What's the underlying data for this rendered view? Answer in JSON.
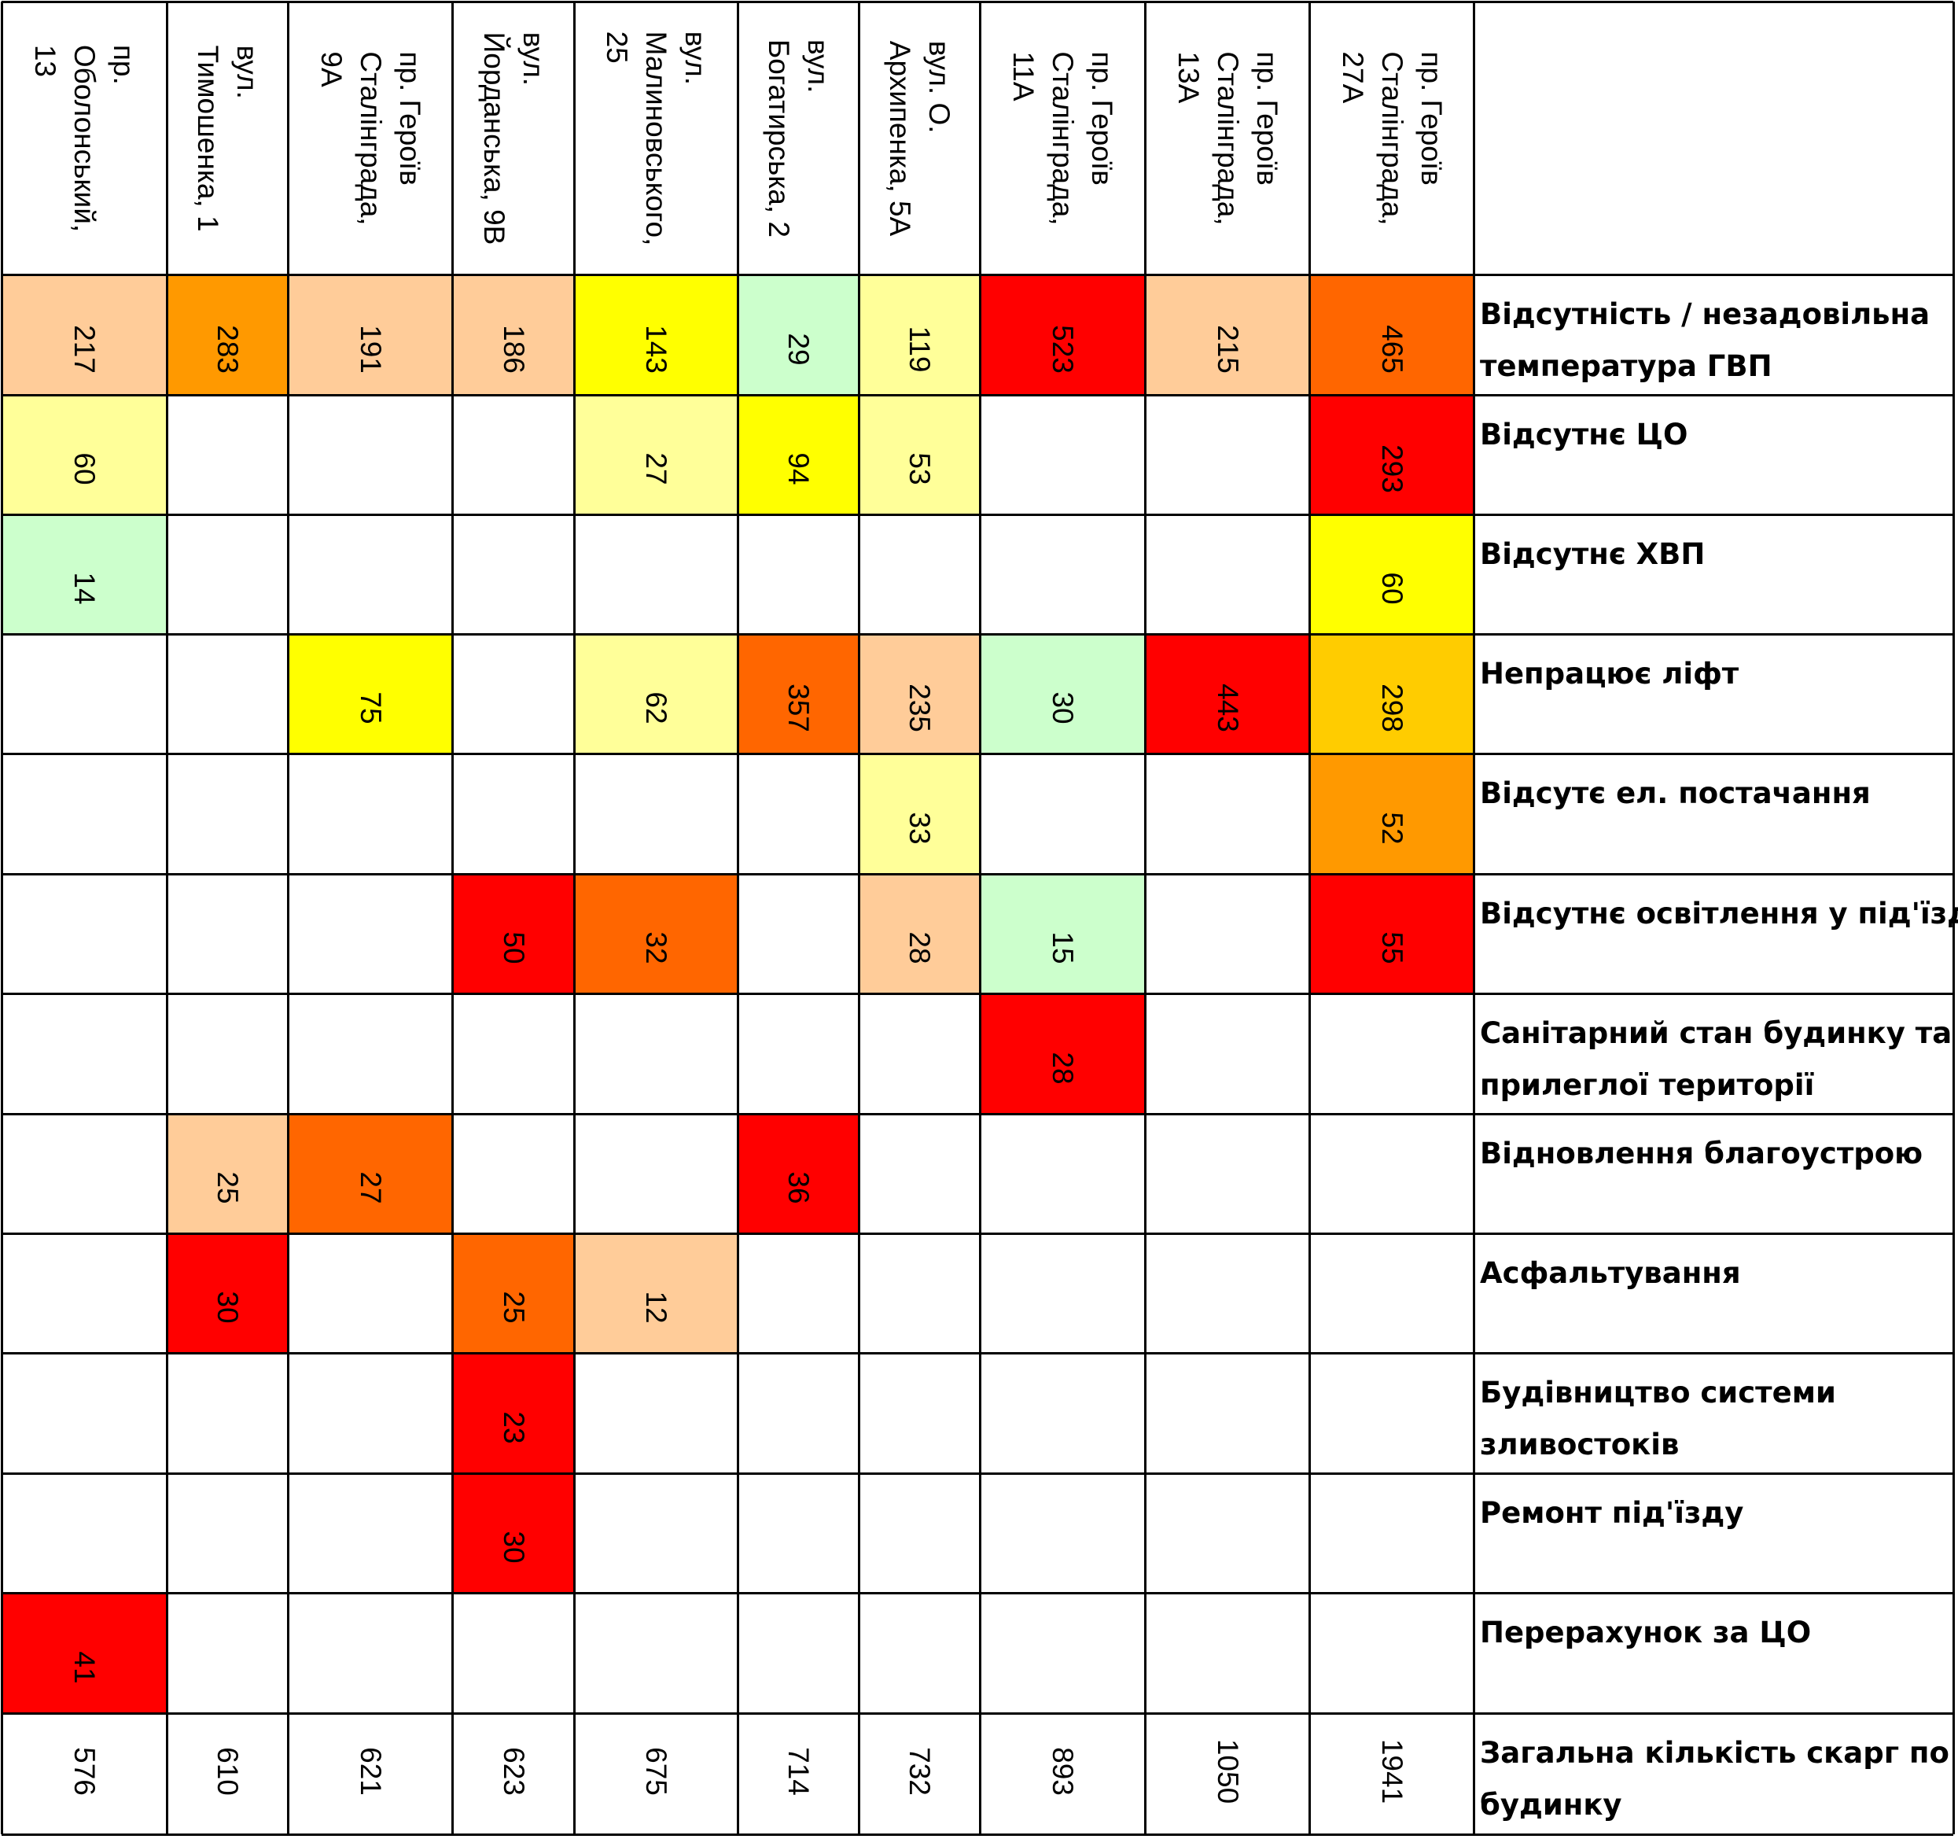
{
  "buildings": [
    {
      "name_lines": [
        "пр.",
        "Оболонський,",
        "13"
      ],
      "total": "576"
    },
    {
      "name_lines": [
        "вул.",
        "Тимошенка, 1"
      ],
      "total": "610"
    },
    {
      "name_lines": [
        "пр. Героїв",
        "Сталінграда,",
        "9А"
      ],
      "total": "621"
    },
    {
      "name_lines": [
        "вул.",
        "Йорданська, 9В"
      ],
      "total": "623"
    },
    {
      "name_lines": [
        "вул.",
        "Малиновського,",
        "25"
      ],
      "total": "675"
    },
    {
      "name_lines": [
        "вул.",
        "Богатирська, 2"
      ],
      "total": "714"
    },
    {
      "name_lines": [
        "вул. О.",
        "Архипенка, 5А"
      ],
      "total": "732"
    },
    {
      "name_lines": [
        "пр. Героїв",
        "Сталінграда,",
        "11А"
      ],
      "total": "893"
    },
    {
      "name_lines": [
        "пр. Героїв",
        "Сталінграда,",
        "13А"
      ],
      "total": "1050"
    },
    {
      "name_lines": [
        "пр. Героїв",
        "Сталінграда,",
        "27А"
      ],
      "total": "1941"
    }
  ],
  "rows": [
    {
      "label_lines": [
        "Відсутність / незадовільна",
        "температура ГВП"
      ],
      "cells": [
        {
          "v": "217",
          "c": "#FFCC99"
        },
        {
          "v": "283",
          "c": "#FF9900"
        },
        {
          "v": "191",
          "c": "#FFCC99"
        },
        {
          "v": "186",
          "c": "#FFCC99"
        },
        {
          "v": "143",
          "c": "#FFFF00"
        },
        {
          "v": "29",
          "c": "#CCFFCC"
        },
        {
          "v": "119",
          "c": "#FFFF99"
        },
        {
          "v": "523",
          "c": "#FF0000"
        },
        {
          "v": "215",
          "c": "#FFCC99"
        },
        {
          "v": "465",
          "c": "#FF6600"
        }
      ]
    },
    {
      "label_lines": [
        "Відсутнє ЦО"
      ],
      "cells": [
        {
          "v": "60",
          "c": "#FFFF99"
        },
        {
          "v": "",
          "c": ""
        },
        {
          "v": "",
          "c": ""
        },
        {
          "v": "",
          "c": ""
        },
        {
          "v": "27",
          "c": "#FFFF99"
        },
        {
          "v": "94",
          "c": "#FFFF00"
        },
        {
          "v": "53",
          "c": "#FFFF99"
        },
        {
          "v": "",
          "c": ""
        },
        {
          "v": "",
          "c": ""
        },
        {
          "v": "293",
          "c": "#FF0000"
        }
      ]
    },
    {
      "label_lines": [
        "Відсутнє ХВП"
      ],
      "cells": [
        {
          "v": "14",
          "c": "#CCFFCC"
        },
        {
          "v": "",
          "c": ""
        },
        {
          "v": "",
          "c": ""
        },
        {
          "v": "",
          "c": ""
        },
        {
          "v": "",
          "c": ""
        },
        {
          "v": "",
          "c": ""
        },
        {
          "v": "",
          "c": ""
        },
        {
          "v": "",
          "c": ""
        },
        {
          "v": "",
          "c": ""
        },
        {
          "v": "60",
          "c": "#FFFF00"
        }
      ]
    },
    {
      "label_lines": [
        "Непрацює ліфт"
      ],
      "cells": [
        {
          "v": "",
          "c": ""
        },
        {
          "v": "",
          "c": ""
        },
        {
          "v": "75",
          "c": "#FFFF00"
        },
        {
          "v": "",
          "c": ""
        },
        {
          "v": "62",
          "c": "#FFFF99"
        },
        {
          "v": "357",
          "c": "#FF6600"
        },
        {
          "v": "235",
          "c": "#FFCC99"
        },
        {
          "v": "30",
          "c": "#CCFFCC"
        },
        {
          "v": "443",
          "c": "#FF0000"
        },
        {
          "v": "298",
          "c": "#FFCC00"
        }
      ]
    },
    {
      "label_lines": [
        "Відсутє  ел. постачання"
      ],
      "cells": [
        {
          "v": "",
          "c": ""
        },
        {
          "v": "",
          "c": ""
        },
        {
          "v": "",
          "c": ""
        },
        {
          "v": "",
          "c": ""
        },
        {
          "v": "",
          "c": ""
        },
        {
          "v": "",
          "c": ""
        },
        {
          "v": "33",
          "c": "#FFFF99"
        },
        {
          "v": "",
          "c": ""
        },
        {
          "v": "",
          "c": ""
        },
        {
          "v": "52",
          "c": "#FF9900"
        }
      ]
    },
    {
      "label_lines": [
        "Відсутнє освітлення у під'їзді"
      ],
      "cells": [
        {
          "v": "",
          "c": ""
        },
        {
          "v": "",
          "c": ""
        },
        {
          "v": "",
          "c": ""
        },
        {
          "v": "50",
          "c": "#FF0000"
        },
        {
          "v": "32",
          "c": "#FF6600"
        },
        {
          "v": "",
          "c": ""
        },
        {
          "v": "28",
          "c": "#FFCC99"
        },
        {
          "v": "15",
          "c": "#CCFFCC"
        },
        {
          "v": "",
          "c": ""
        },
        {
          "v": "55",
          "c": "#FF0000"
        }
      ]
    },
    {
      "label_lines": [
        "Санітарний стан будинку та",
        "прилеглої території"
      ],
      "cells": [
        {
          "v": "",
          "c": ""
        },
        {
          "v": "",
          "c": ""
        },
        {
          "v": "",
          "c": ""
        },
        {
          "v": "",
          "c": ""
        },
        {
          "v": "",
          "c": ""
        },
        {
          "v": "",
          "c": ""
        },
        {
          "v": "",
          "c": ""
        },
        {
          "v": "28",
          "c": "#FF0000"
        },
        {
          "v": "",
          "c": ""
        },
        {
          "v": "",
          "c": ""
        }
      ]
    },
    {
      "label_lines": [
        "Відновлення благоустрою"
      ],
      "cells": [
        {
          "v": "",
          "c": ""
        },
        {
          "v": "25",
          "c": "#FFCC99"
        },
        {
          "v": "27",
          "c": "#FF6600"
        },
        {
          "v": "",
          "c": ""
        },
        {
          "v": "",
          "c": ""
        },
        {
          "v": "36",
          "c": "#FF0000"
        },
        {
          "v": "",
          "c": ""
        },
        {
          "v": "",
          "c": ""
        },
        {
          "v": "",
          "c": ""
        },
        {
          "v": "",
          "c": ""
        }
      ]
    },
    {
      "label_lines": [
        "Асфальтування"
      ],
      "cells": [
        {
          "v": "",
          "c": ""
        },
        {
          "v": "30",
          "c": "#FF0000"
        },
        {
          "v": "",
          "c": ""
        },
        {
          "v": "25",
          "c": "#FF6600"
        },
        {
          "v": "12",
          "c": "#FFCC99"
        },
        {
          "v": "",
          "c": ""
        },
        {
          "v": "",
          "c": ""
        },
        {
          "v": "",
          "c": ""
        },
        {
          "v": "",
          "c": ""
        },
        {
          "v": "",
          "c": ""
        }
      ]
    },
    {
      "label_lines": [
        "Будівництво системи",
        "зливостоків"
      ],
      "cells": [
        {
          "v": "",
          "c": ""
        },
        {
          "v": "",
          "c": ""
        },
        {
          "v": "",
          "c": ""
        },
        {
          "v": "23",
          "c": "#FF0000"
        },
        {
          "v": "",
          "c": ""
        },
        {
          "v": "",
          "c": ""
        },
        {
          "v": "",
          "c": ""
        },
        {
          "v": "",
          "c": ""
        },
        {
          "v": "",
          "c": ""
        },
        {
          "v": "",
          "c": ""
        }
      ]
    },
    {
      "label_lines": [
        "Ремонт під'їзду"
      ],
      "cells": [
        {
          "v": "",
          "c": ""
        },
        {
          "v": "",
          "c": ""
        },
        {
          "v": "",
          "c": ""
        },
        {
          "v": "30",
          "c": "#FF0000"
        },
        {
          "v": "",
          "c": ""
        },
        {
          "v": "",
          "c": ""
        },
        {
          "v": "",
          "c": ""
        },
        {
          "v": "",
          "c": ""
        },
        {
          "v": "",
          "c": ""
        },
        {
          "v": "",
          "c": ""
        }
      ]
    },
    {
      "label_lines": [
        "Перерахунок за ЦО"
      ],
      "cells": [
        {
          "v": "41",
          "c": "#FF0000"
        },
        {
          "v": "",
          "c": ""
        },
        {
          "v": "",
          "c": ""
        },
        {
          "v": "",
          "c": ""
        },
        {
          "v": "",
          "c": ""
        },
        {
          "v": "",
          "c": ""
        },
        {
          "v": "",
          "c": ""
        },
        {
          "v": "",
          "c": ""
        },
        {
          "v": "",
          "c": ""
        },
        {
          "v": "",
          "c": ""
        }
      ]
    }
  ],
  "totals_label_lines": [
    "Загальна кількість скарг по",
    "будинку"
  ]
}
